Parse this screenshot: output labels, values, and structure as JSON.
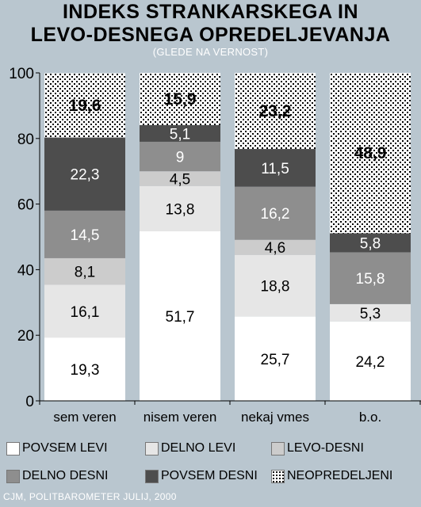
{
  "chart_data": {
    "type": "bar",
    "stacked": true,
    "title": "INDEKS STRANKARSKEGA IN LEVO-DESNEGA OPREDELJEVANJA",
    "title_lines": [
      "INDEKS STRANKARSKEGA IN",
      "LEVO-DESNEGA OPREDELJEVANJA"
    ],
    "subtitle": "(GLEDE NA VERNOST)",
    "categories": [
      "sem veren",
      "nisem veren",
      "nekaj vmes",
      "b.o."
    ],
    "series": [
      {
        "name": "POVSEM LEVI",
        "values": [
          19.3,
          51.7,
          25.7,
          24.2
        ],
        "color": "#ffffff",
        "label_color": "#000000"
      },
      {
        "name": "DELNO LEVI",
        "values": [
          16.1,
          13.8,
          18.8,
          5.3
        ],
        "color": "#e6e6e6",
        "label_color": "#000000"
      },
      {
        "name": "LEVO-DESNI",
        "values": [
          8.1,
          4.5,
          4.6,
          null
        ],
        "color": "#cccccc",
        "label_color": "#000000"
      },
      {
        "name": "DELNO DESNI",
        "values": [
          14.5,
          9,
          16.2,
          15.8
        ],
        "color": "#8e8e8e",
        "label_color": "#ffffff"
      },
      {
        "name": "POVSEM DESNI",
        "values": [
          22.3,
          5.1,
          11.5,
          5.8
        ],
        "color": "#4d4d4d",
        "label_color": "#ffffff"
      },
      {
        "name": "NEOPREDELJENI",
        "values": [
          19.6,
          15.9,
          23.2,
          48.9
        ],
        "color": "pattern-dots",
        "label_color": "#000000",
        "bold_labels": true
      }
    ],
    "ylim": [
      0,
      100
    ],
    "yticks": [
      0,
      20,
      40,
      60,
      80,
      100
    ],
    "grid": false,
    "legend_position": "bottom"
  },
  "source": "CJM, POLITBAROMETER JULIJ, 2000"
}
